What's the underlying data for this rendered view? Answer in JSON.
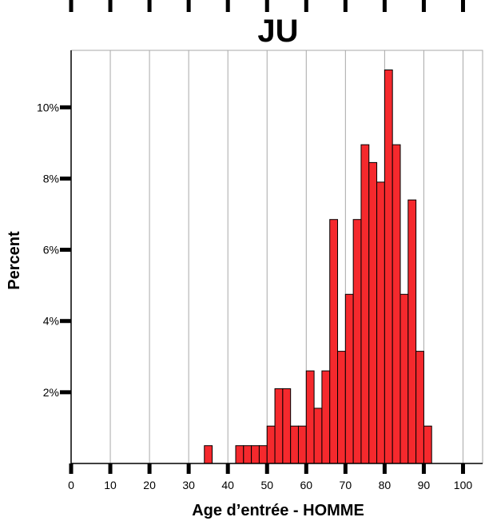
{
  "chart_data": {
    "type": "bar",
    "title": "JU",
    "xlabel": "Age d’entrée - HOMME",
    "ylabel": "Percent",
    "xlim": [
      0,
      105
    ],
    "ylim": [
      0,
      11.6
    ],
    "x_ticks": [
      "0",
      "10",
      "20",
      "30",
      "40",
      "50",
      "60",
      "70",
      "80",
      "90",
      "100"
    ],
    "y_ticks": [
      {
        "value": 2,
        "label": "2%"
      },
      {
        "value": 4,
        "label": "4%"
      },
      {
        "value": 6,
        "label": "6%"
      },
      {
        "value": 8,
        "label": "8%"
      },
      {
        "value": 10,
        "label": "10%"
      }
    ],
    "grid": "vertical",
    "bin_width": 2,
    "bins": [
      {
        "start": 34,
        "value": 0.5
      },
      {
        "start": 42,
        "value": 0.5
      },
      {
        "start": 44,
        "value": 0.5
      },
      {
        "start": 46,
        "value": 0.5
      },
      {
        "start": 48,
        "value": 0.5
      },
      {
        "start": 50,
        "value": 1.05
      },
      {
        "start": 52,
        "value": 2.1
      },
      {
        "start": 54,
        "value": 2.1
      },
      {
        "start": 56,
        "value": 1.05
      },
      {
        "start": 58,
        "value": 1.05
      },
      {
        "start": 60,
        "value": 2.6
      },
      {
        "start": 62,
        "value": 1.55
      },
      {
        "start": 64,
        "value": 2.6
      },
      {
        "start": 66,
        "value": 6.85
      },
      {
        "start": 68,
        "value": 3.15
      },
      {
        "start": 70,
        "value": 4.75
      },
      {
        "start": 72,
        "value": 6.85
      },
      {
        "start": 74,
        "value": 8.95
      },
      {
        "start": 76,
        "value": 8.45
      },
      {
        "start": 78,
        "value": 7.9
      },
      {
        "start": 80,
        "value": 11.05
      },
      {
        "start": 82,
        "value": 8.95
      },
      {
        "start": 84,
        "value": 4.75
      },
      {
        "start": 86,
        "value": 7.4
      },
      {
        "start": 88,
        "value": 3.15
      },
      {
        "start": 90,
        "value": 1.05
      }
    ],
    "colors": {
      "bar_fill": "#f5292d",
      "bar_stroke": "#000000",
      "grid": "#a8a8a8",
      "axis": "#000000"
    }
  }
}
